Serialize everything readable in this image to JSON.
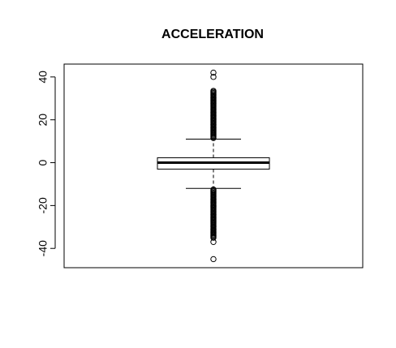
{
  "chart_data": {
    "type": "boxplot",
    "title": "ACCELERATION",
    "xlabel": "",
    "ylabel": "",
    "ylim": [
      -49,
      46
    ],
    "yticks": [
      -40,
      -20,
      0,
      20,
      40
    ],
    "ytick_labels": [
      "-40",
      "-20",
      "0",
      "20",
      "40"
    ],
    "grid": false,
    "legend": "none",
    "box": {
      "whisker_low": -12,
      "q1": -3,
      "median": 0,
      "q3": 2.3,
      "whisker_high": 11
    },
    "outliers": [
      42,
      40,
      33.5,
      33,
      32.5,
      32,
      31.5,
      31,
      30.5,
      30,
      29.5,
      29,
      28.5,
      28,
      27.5,
      27,
      26.5,
      26,
      25.5,
      25,
      24.5,
      24,
      23.5,
      23,
      22.5,
      22,
      21.5,
      21,
      20.5,
      20,
      19.5,
      19,
      18.5,
      18,
      17.5,
      17,
      16.5,
      16,
      15.5,
      15,
      14.5,
      14,
      13.5,
      13,
      12.5,
      12,
      11.5,
      -12.5,
      -13,
      -13.5,
      -14,
      -14.5,
      -15,
      -15.5,
      -16,
      -16.5,
      -17,
      -17.5,
      -18,
      -18.5,
      -19,
      -19.5,
      -20,
      -20.5,
      -21,
      -21.5,
      -22,
      -22.5,
      -23,
      -23.5,
      -24,
      -24.5,
      -25,
      -25.5,
      -26,
      -26.5,
      -27,
      -27.5,
      -28,
      -28.5,
      -29,
      -29.5,
      -30,
      -30.5,
      -31,
      -31.5,
      -32,
      -32.5,
      -33,
      -33.5,
      -34,
      -34.5,
      -35,
      -37,
      -45
    ],
    "colors": {
      "box_fill": "#ffffff",
      "stroke": "#000000",
      "background": "#ffffff"
    }
  }
}
